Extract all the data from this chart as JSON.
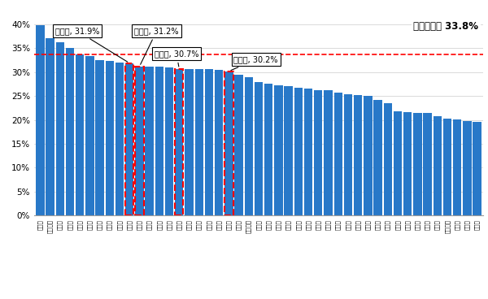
{
  "prefectures": [
    "東京都",
    "神奈川県",
    "滋賀県",
    "大阪府",
    "山梨県",
    "埼玉県",
    "千葉県",
    "福井県",
    "茨城県",
    "愛知県",
    "三重県",
    "栃木県",
    "兵庫県",
    "京都府",
    "岐阜県",
    "奈良県",
    "福岡県",
    "岡山県",
    "佐賀県",
    "静岡県",
    "群馬県",
    "和歌山県",
    "石川県",
    "新潟県",
    "広島県",
    "徳島県",
    "沖縄県",
    "富山県",
    "香川県",
    "宮城県",
    "長野県",
    "鳥取県",
    "山形県",
    "福島県",
    "大分県",
    "長崎県",
    "山口県",
    "愛媛県",
    "岩手県",
    "北海道",
    "宮崎県",
    "鹿児島県",
    "高知県",
    "秋田県",
    "青森県"
  ],
  "values": [
    39.9,
    37.1,
    36.2,
    35.0,
    33.8,
    33.4,
    32.6,
    32.4,
    32.0,
    31.9,
    31.2,
    31.1,
    31.1,
    31.0,
    30.7,
    30.6,
    30.6,
    30.6,
    30.5,
    30.2,
    29.5,
    29.0,
    28.0,
    27.6,
    27.3,
    27.0,
    26.7,
    26.5,
    26.3,
    26.2,
    25.7,
    25.3,
    25.2,
    25.1,
    24.2,
    23.5,
    21.8,
    21.7,
    21.5,
    21.4,
    20.7,
    20.2,
    20.1,
    19.8,
    19.5
  ],
  "red_border_indices": [
    9,
    10,
    14,
    19
  ],
  "bar_color": "#2878C8",
  "red_color": "#FF0000",
  "national_rate": 33.8,
  "national_label": "全国普及率 33.8%",
  "annotation_configs": [
    {
      "label": "愛知県, 31.9%",
      "xa": 9,
      "ya": 31.9,
      "xtext": 1.5,
      "ytext": 37.8
    },
    {
      "label": "三重県, 31.2%",
      "xa": 10,
      "ya": 31.2,
      "xtext": 9.5,
      "ytext": 37.8
    },
    {
      "label": "岐阜県, 30.7%",
      "xa": 14,
      "ya": 30.7,
      "xtext": 11.5,
      "ytext": 33.0
    },
    {
      "label": "静岡県, 30.2%",
      "xa": 19,
      "ya": 30.2,
      "xtext": 19.5,
      "ytext": 31.8
    }
  ],
  "ylim": [
    0,
    42
  ],
  "yticks": [
    0,
    5,
    10,
    15,
    20,
    25,
    30,
    35,
    40
  ],
  "background_color": "#FFFFFF",
  "grid_color": "#CCCCCC"
}
